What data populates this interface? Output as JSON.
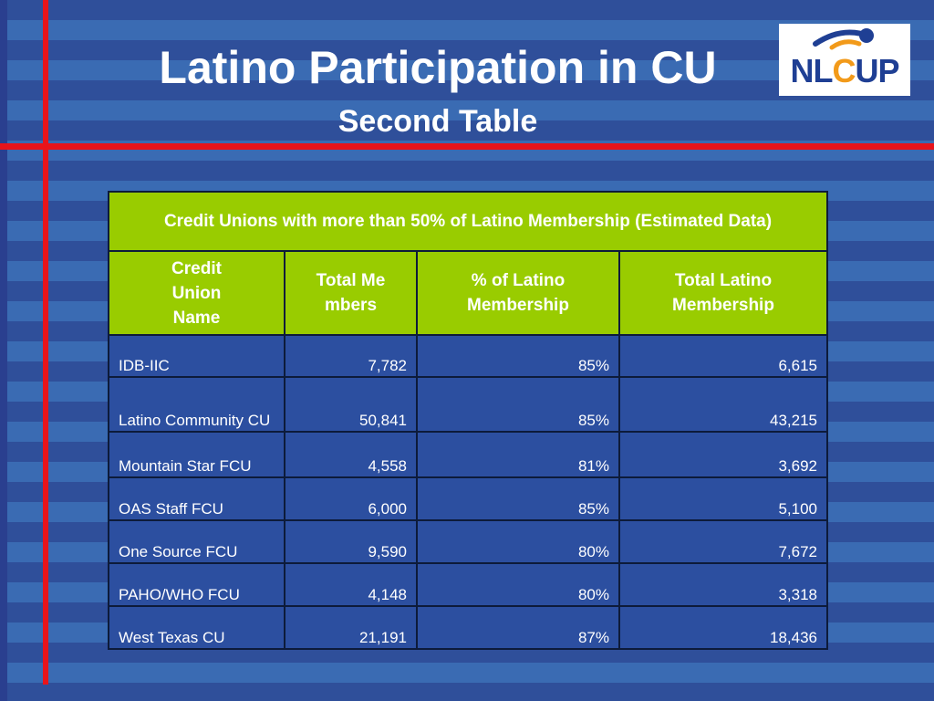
{
  "slide": {
    "title": "Latino Participation in CU",
    "subtitle": "Second Table"
  },
  "logo": {
    "text": "NLCUP",
    "colors": {
      "dark_blue": "#1f3f94",
      "orange": "#f29a1a"
    }
  },
  "table": {
    "caption": "Credit Unions with more than 50% of Latino Membership (Estimated Data)",
    "headers": {
      "name": "Credit Union Name",
      "total_members": "Total Members",
      "pct_latino": "% of Latino Membership",
      "total_latino": "Total Latino Membership"
    },
    "rows": [
      {
        "name": "IDB-IIC",
        "total_members": "7,782",
        "pct_latino": "85%",
        "total_latino": "6,615"
      },
      {
        "name": "Latino Community CU",
        "total_members": "50,841",
        "pct_latino": "85%",
        "total_latino": "43,215"
      },
      {
        "name": "Mountain Star FCU",
        "total_members": "4,558",
        "pct_latino": "81%",
        "total_latino": "3,692"
      },
      {
        "name": "OAS Staff FCU",
        "total_members": "6,000",
        "pct_latino": "85%",
        "total_latino": "5,100"
      },
      {
        "name": "One Source FCU",
        "total_members": "9,590",
        "pct_latino": "80%",
        "total_latino": "7,672"
      },
      {
        "name": "PAHO/WHO FCU",
        "total_members": "4,148",
        "pct_latino": "80%",
        "total_latino": "3,318"
      },
      {
        "name": "West Texas CU",
        "total_members": "21,191",
        "pct_latino": "87%",
        "total_latino": "18,436"
      }
    ]
  },
  "colors": {
    "header_green": "#99cc00",
    "accent_red": "#e8141b",
    "background_blue": "#2f4f9a"
  }
}
